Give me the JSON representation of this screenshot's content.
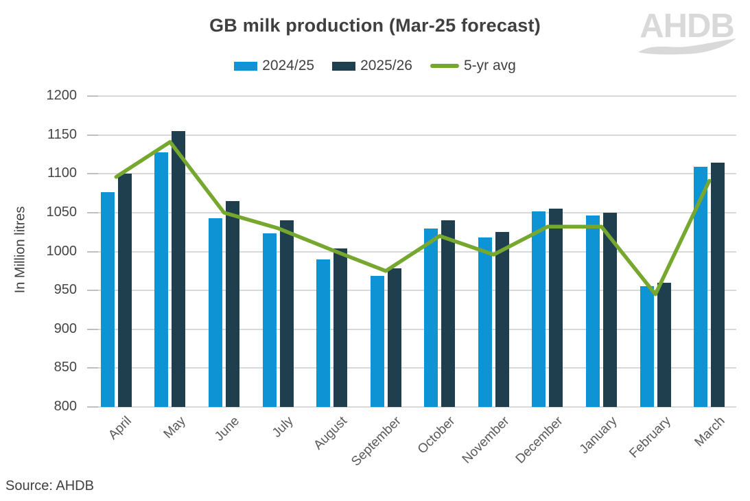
{
  "header": {
    "logo_text": "AHDB"
  },
  "footer": {
    "source": "Source: AHDB"
  },
  "colors": {
    "gridline": "#d9d9d9",
    "tick_mark": "#bfbfbf",
    "title_text": "#404040",
    "axis_text": "#595959",
    "logo_gray": "#d9d9d9",
    "series_2024_25": "#0e93d5",
    "series_2025_26": "#203f4e",
    "series_5yr_avg": "#76a72f"
  },
  "chart_data": {
    "type": "bar",
    "title": "GB milk production (Mar-25 forecast)",
    "xlabel": "",
    "ylabel": "In Million litres",
    "ylim": [
      800,
      1200
    ],
    "yticks": [
      800,
      850,
      900,
      950,
      1000,
      1050,
      1100,
      1150,
      1200
    ],
    "grid": true,
    "legend_position": "top",
    "categories": [
      "April",
      "May",
      "June",
      "July",
      "August",
      "September",
      "October",
      "November",
      "December",
      "January",
      "February",
      "March"
    ],
    "series": [
      {
        "name": "2024/25",
        "type": "bar",
        "color": "#0e93d5",
        "values": [
          1076,
          1128,
          1043,
          1023,
          990,
          969,
          1030,
          1018,
          1052,
          1046,
          955,
          1109
        ]
      },
      {
        "name": "2025/26",
        "type": "bar",
        "color": "#203f4e",
        "values": [
          1100,
          1155,
          1065,
          1040,
          1004,
          978,
          1040,
          1025,
          1055,
          1050,
          960,
          1114
        ]
      },
      {
        "name": "5-yr avg",
        "type": "line",
        "color": "#76a72f",
        "values": [
          1096,
          1141,
          1050,
          1030,
          1002,
          975,
          1020,
          996,
          1032,
          1032,
          945,
          1091
        ]
      }
    ]
  }
}
